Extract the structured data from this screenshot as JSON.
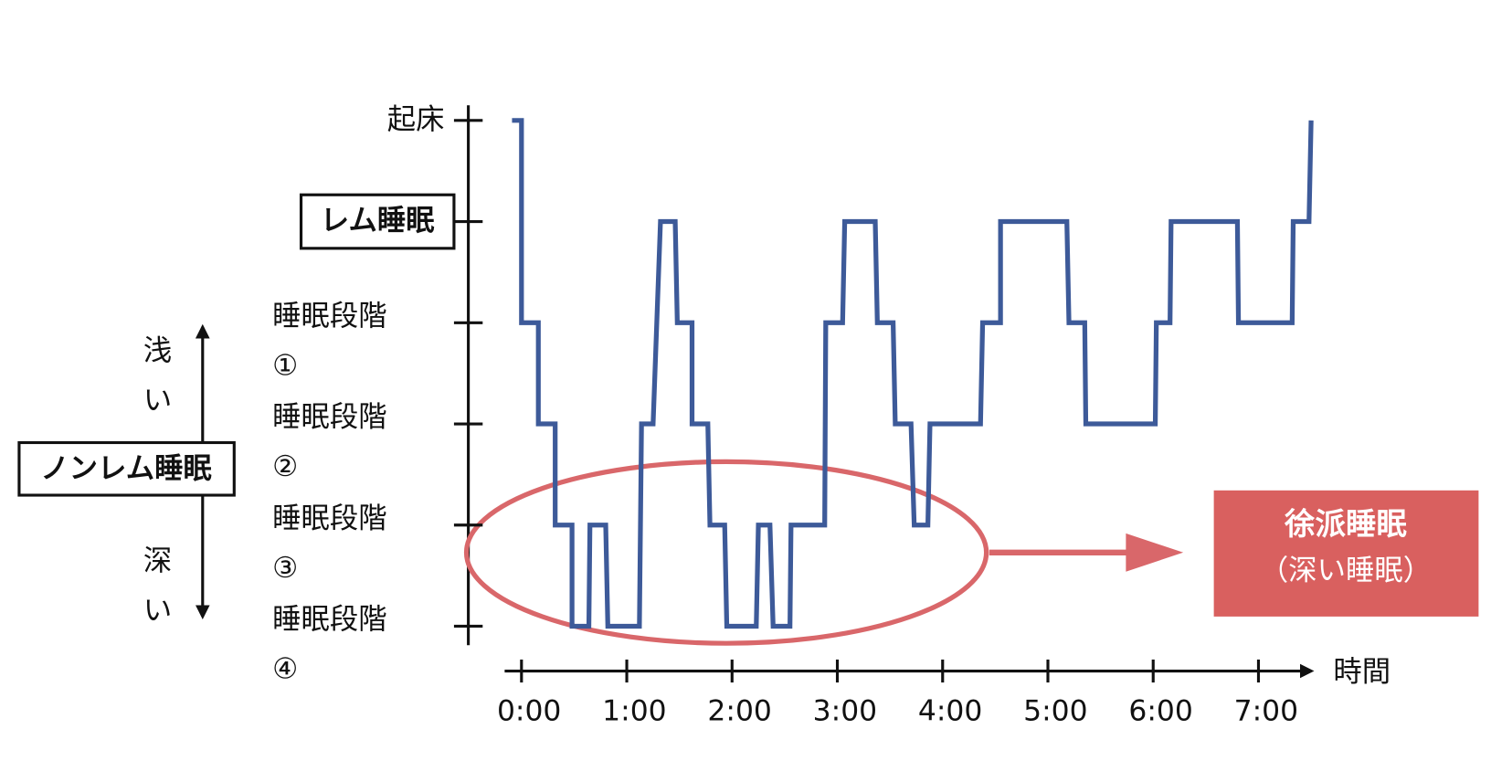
{
  "chart_data": {
    "type": "line",
    "x_label": "時間",
    "xlim": [
      -0.16,
      7.62
    ],
    "xticks": [
      {
        "value": 0,
        "label": "0:00"
      },
      {
        "value": 1,
        "label": "1:00"
      },
      {
        "value": 2,
        "label": "2:00"
      },
      {
        "value": 3,
        "label": "3:00"
      },
      {
        "value": 4,
        "label": "4:00"
      },
      {
        "value": 5,
        "label": "5:00"
      },
      {
        "value": 6,
        "label": "6:00"
      },
      {
        "value": 7,
        "label": "7:00"
      }
    ],
    "ylim": [
      -0.15,
      5.15
    ],
    "yticks": [
      {
        "value": 5,
        "label": "起床"
      },
      {
        "value": 4,
        "label": "レム睡眠",
        "boxed": true
      },
      {
        "value": 3,
        "label": "睡眠段階①"
      },
      {
        "value": 2,
        "label": "睡眠段階②"
      },
      {
        "value": 1,
        "label": "睡眠段階③"
      },
      {
        "value": 0,
        "label": "睡眠段階④"
      }
    ],
    "series": [
      {
        "color": "#3d5a99",
        "x": [
          -0.09,
          0,
          0,
          0.16,
          0.16,
          0.32,
          0.32,
          0.48,
          0.48,
          0.64,
          0.65,
          0.8,
          0.82,
          1.12,
          1.14,
          1.25,
          1.32,
          1.46,
          1.48,
          1.62,
          1.62,
          1.77,
          1.79,
          1.93,
          1.95,
          2.23,
          2.25,
          2.36,
          2.39,
          2.55,
          2.56,
          2.88,
          2.89,
          3.05,
          3.07,
          3.36,
          3.38,
          3.53,
          3.55,
          3.7,
          3.73,
          3.86,
          3.88,
          4.36,
          4.38,
          4.55,
          4.55,
          5.18,
          5.2,
          5.35,
          5.36,
          6.02,
          6.03,
          6.16,
          6.17,
          6.8,
          6.81,
          7.32,
          7.33,
          7.48,
          7.5
        ],
        "values": [
          5,
          5,
          3,
          3,
          2,
          2,
          1,
          1,
          0,
          0,
          1,
          1,
          0,
          0,
          2,
          2,
          4,
          4,
          3,
          3,
          2,
          2,
          1,
          1,
          0,
          0,
          1,
          1,
          0,
          0,
          1,
          1,
          3,
          3,
          4,
          4,
          3,
          3,
          2,
          2,
          1,
          1,
          2,
          2,
          3,
          3,
          4,
          4,
          3,
          3,
          2,
          2,
          3,
          3,
          4,
          4,
          3,
          3,
          4,
          4,
          5
        ]
      }
    ],
    "annotations": {
      "nonrem_label": "ノンレム睡眠",
      "shallow": "浅い",
      "deep": "深い",
      "callout_title": "徐派睡眠",
      "callout_sub": "（深い睡眠）"
    }
  }
}
